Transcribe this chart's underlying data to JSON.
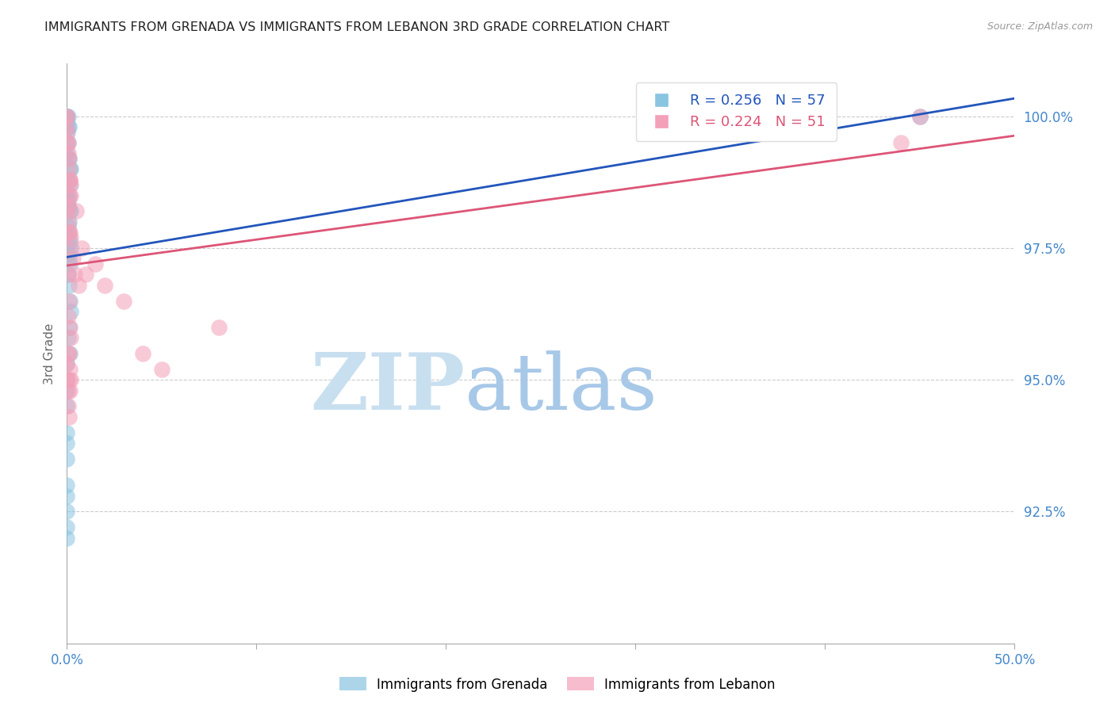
{
  "title": "IMMIGRANTS FROM GRENADA VS IMMIGRANTS FROM LEBANON 3RD GRADE CORRELATION CHART",
  "source": "Source: ZipAtlas.com",
  "ylabel": "3rd Grade",
  "y_tick_values": [
    92.5,
    95.0,
    97.5,
    100.0
  ],
  "legend_label_blue": "Immigrants from Grenada",
  "legend_label_pink": "Immigrants from Lebanon",
  "R_blue": 0.256,
  "N_blue": 57,
  "R_pink": 0.224,
  "N_pink": 51,
  "color_blue": "#89c4e1",
  "color_pink": "#f4a0b8",
  "line_color_blue": "#2255bb",
  "line_color_pink": "#dd5577",
  "watermark_zip": "ZIP",
  "watermark_atlas": "atlas",
  "watermark_color_zip": "#c8dff0",
  "watermark_color_atlas": "#c8dff0",
  "axis_label_color": "#4488cc",
  "title_fontsize": 11.5,
  "x_min": 0.0,
  "x_max": 50.0,
  "y_min": 90.0,
  "y_max": 101.0,
  "blue_x": [
    0.0,
    0.0,
    0.0,
    0.0,
    0.0,
    0.05,
    0.05,
    0.1,
    0.05,
    0.02,
    0.0,
    0.0,
    0.05,
    0.1,
    0.15,
    0.2,
    0.1,
    0.15,
    0.05,
    0.0,
    0.0,
    0.05,
    0.1,
    0.05,
    0.0,
    0.15,
    0.2,
    0.1,
    0.05,
    0.0,
    0.05,
    0.1,
    0.15,
    0.2,
    0.05,
    0.1,
    0.15,
    0.05,
    0.1,
    0.15,
    0.2,
    0.1,
    0.05,
    0.15,
    0.0,
    0.0,
    0.0,
    0.0,
    0.0,
    0.0,
    0.0,
    0.0,
    0.0,
    0.0,
    0.0,
    0.0,
    45.0
  ],
  "blue_y": [
    100.0,
    100.0,
    100.0,
    99.9,
    100.0,
    100.0,
    99.8,
    99.8,
    99.5,
    99.7,
    99.5,
    99.3,
    99.2,
    99.2,
    99.0,
    99.0,
    98.8,
    98.7,
    98.8,
    98.6,
    98.5,
    98.4,
    98.5,
    98.3,
    98.3,
    98.2,
    98.2,
    98.0,
    97.9,
    97.8,
    97.8,
    97.7,
    97.6,
    97.5,
    97.4,
    97.3,
    97.2,
    97.0,
    96.8,
    96.5,
    96.3,
    96.0,
    95.8,
    95.5,
    95.3,
    95.0,
    94.8,
    94.5,
    94.0,
    93.8,
    93.5,
    93.0,
    92.8,
    92.5,
    92.2,
    92.0,
    100.0
  ],
  "pink_x": [
    0.0,
    0.0,
    0.0,
    0.0,
    0.0,
    0.05,
    0.05,
    0.1,
    0.1,
    0.15,
    0.15,
    0.2,
    0.2,
    0.1,
    0.05,
    0.0,
    0.05,
    0.1,
    0.15,
    0.2,
    0.5,
    0.8,
    1.5,
    1.0,
    2.0,
    3.0,
    0.3,
    0.4,
    0.6,
    4.0,
    0.0,
    0.05,
    0.1,
    0.15,
    0.2,
    0.05,
    0.1,
    0.15,
    0.2,
    0.05,
    0.1,
    0.15,
    0.0,
    0.0,
    0.05,
    0.05,
    0.1,
    5.0,
    8.0,
    45.0,
    44.0
  ],
  "pink_y": [
    100.0,
    100.0,
    99.8,
    99.7,
    99.5,
    99.5,
    99.3,
    99.2,
    99.0,
    98.8,
    98.8,
    98.7,
    98.5,
    98.5,
    98.3,
    98.2,
    98.0,
    97.8,
    97.8,
    97.7,
    98.2,
    97.5,
    97.2,
    97.0,
    96.8,
    96.5,
    97.3,
    97.0,
    96.8,
    95.5,
    97.5,
    97.0,
    96.5,
    96.0,
    95.8,
    96.2,
    95.5,
    95.2,
    95.0,
    95.5,
    95.0,
    94.8,
    95.3,
    95.0,
    94.5,
    94.8,
    94.3,
    95.2,
    96.0,
    100.0,
    99.5
  ]
}
